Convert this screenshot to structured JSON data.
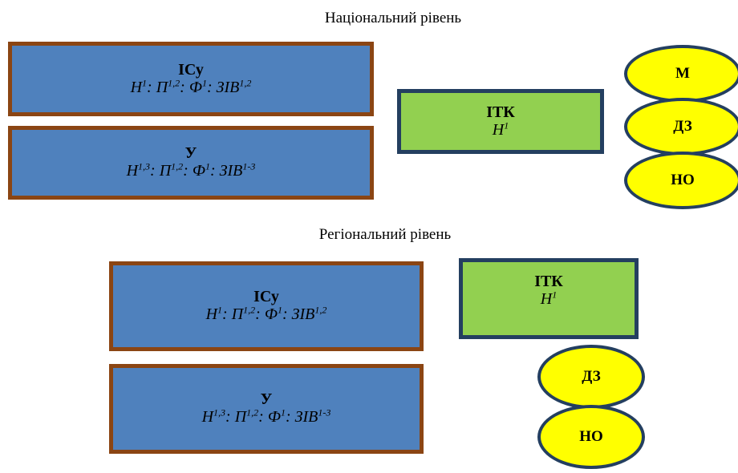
{
  "national": {
    "title": "Національний рівень",
    "box_ics": {
      "title": "ІСу",
      "formula": [
        {
          "base": "Н",
          "sup": "1",
          "sep": ": "
        },
        {
          "base": "П",
          "sup": "1,2",
          "sep": ": "
        },
        {
          "base": "Ф",
          "sup": "1",
          "sep": ": "
        },
        {
          "base": "ЗІВ",
          "sup": "1,2",
          "sep": ""
        }
      ]
    },
    "box_u": {
      "title": "У",
      "formula": [
        {
          "base": "Н",
          "sup": "1,3",
          "sep": ": "
        },
        {
          "base": "П",
          "sup": "1,2",
          "sep": ": "
        },
        {
          "base": "Ф",
          "sup": "1",
          "sep": ": "
        },
        {
          "base": "ЗІВ",
          "sup": "1-3",
          "sep": ""
        }
      ]
    },
    "box_itk": {
      "title": "ІТК",
      "formula": [
        {
          "base": "Н",
          "sup": "1",
          "sep": ""
        }
      ]
    },
    "ellipses": [
      "М",
      "ДЗ",
      "НО"
    ]
  },
  "regional": {
    "title": "Регіональний рівень",
    "box_ics": {
      "title": "ІСу",
      "formula": [
        {
          "base": "Н",
          "sup": "1",
          "sep": ": "
        },
        {
          "base": "П",
          "sup": "1,2",
          "sep": ": "
        },
        {
          "base": "Ф",
          "sup": "1",
          "sep": ": "
        },
        {
          "base": "ЗІВ",
          "sup": "1,2",
          "sep": ""
        }
      ]
    },
    "box_u": {
      "title": "У",
      "formula": [
        {
          "base": "Н",
          "sup": "1,3",
          "sep": ": "
        },
        {
          "base": "П",
          "sup": "1,2",
          "sep": ": "
        },
        {
          "base": "Ф",
          "sup": "1",
          "sep": ": "
        },
        {
          "base": "ЗІВ",
          "sup": "1-3",
          "sep": ""
        }
      ]
    },
    "box_itk": {
      "title": "ІТК",
      "formula": [
        {
          "base": "Н",
          "sup": "1",
          "sep": ""
        }
      ]
    },
    "ellipses": [
      "ДЗ",
      "НО"
    ]
  },
  "colors": {
    "blue_fill": "#4f81bd",
    "brown_border": "#8b4513",
    "green_fill": "#92d050",
    "navy_border": "#243f60",
    "yellow_fill": "#ffff00"
  }
}
